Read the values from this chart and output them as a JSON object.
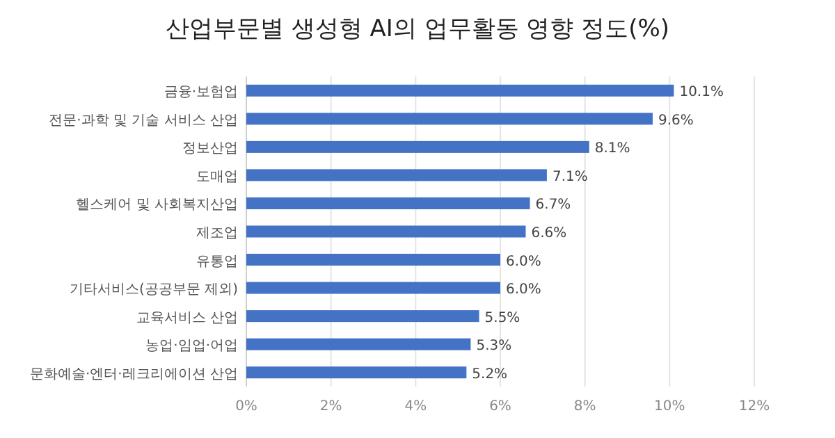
{
  "chart_data": {
    "type": "bar",
    "orientation": "horizontal",
    "title": "산업부문별 생성형 AI의 업무활동 영향 정도(%)",
    "categories": [
      "금융·보험업",
      "전문·과학 및 기술 서비스 산업",
      "정보산업",
      "도매업",
      "헬스케어 및 사회복지산업",
      "제조업",
      "유통업",
      "기타서비스(공공부문 제외)",
      "교육서비스 산업",
      "농업·임업·어업",
      "문화예술·엔터·레크리에이션 산업"
    ],
    "values": [
      10.1,
      9.6,
      8.1,
      7.1,
      6.7,
      6.6,
      6.0,
      6.0,
      5.5,
      5.3,
      5.2
    ],
    "value_labels": [
      "10.1%",
      "9.6%",
      "8.1%",
      "7.1%",
      "6.7%",
      "6.6%",
      "6.0%",
      "6.0%",
      "5.5%",
      "5.3%",
      "5.2%"
    ],
    "color": "#4472c4",
    "xlim": [
      0,
      12
    ],
    "xticks": [
      {
        "value": 0,
        "label": "0%"
      },
      {
        "value": 2,
        "label": "2%"
      },
      {
        "value": 4,
        "label": "4%"
      },
      {
        "value": 6,
        "label": "6%"
      },
      {
        "value": 8,
        "label": "8%"
      },
      {
        "value": 10,
        "label": "10%"
      },
      {
        "value": 12,
        "label": "12%"
      }
    ],
    "grid": "x"
  }
}
